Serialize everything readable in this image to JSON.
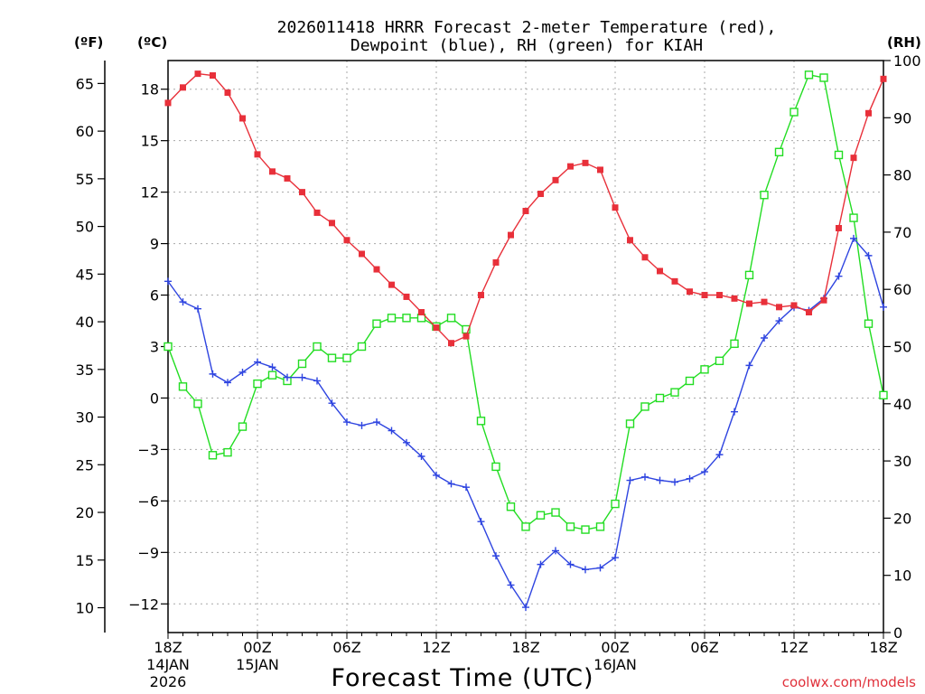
{
  "chart_data": {
    "type": "line",
    "title_line1": "2026011418 HRRR Forecast 2-meter Temperature (red),",
    "title_line2": "Dewpoint (blue), RH (green) for KIAH",
    "xlabel": "Forecast Time (UTC)",
    "credit": "coolwx.com/models",
    "unit_labels": {
      "fahrenheit": "(ºF)",
      "celsius": "(ºC)",
      "rh": "(RH)"
    },
    "x_range_hours": [
      0,
      48
    ],
    "celsius_range": [
      -13.67,
      19.67
    ],
    "rh_range": [
      0,
      100
    ],
    "x_ticks": [
      {
        "hour": 0,
        "label": "18Z",
        "sub1": "14JAN",
        "sub2": "2026"
      },
      {
        "hour": 6,
        "label": "00Z",
        "sub1": "15JAN",
        "sub2": ""
      },
      {
        "hour": 12,
        "label": "06Z",
        "sub1": "",
        "sub2": ""
      },
      {
        "hour": 18,
        "label": "12Z",
        "sub1": "",
        "sub2": ""
      },
      {
        "hour": 24,
        "label": "18Z",
        "sub1": "",
        "sub2": ""
      },
      {
        "hour": 30,
        "label": "00Z",
        "sub1": "16JAN",
        "sub2": ""
      },
      {
        "hour": 36,
        "label": "06Z",
        "sub1": "",
        "sub2": ""
      },
      {
        "hour": 42,
        "label": "12Z",
        "sub1": "",
        "sub2": ""
      },
      {
        "hour": 48,
        "label": "18Z",
        "sub1": "",
        "sub2": ""
      }
    ],
    "celsius_ticks": [
      18,
      15,
      12,
      9,
      6,
      3,
      0,
      -3,
      -6,
      -9,
      -12
    ],
    "celsius_tick_labels": [
      "18",
      "15",
      "12",
      "9",
      "6",
      "3",
      "0",
      "−3",
      "−6",
      "−9",
      "−12"
    ],
    "fahrenheit_ticks": [
      65,
      60,
      55,
      50,
      45,
      40,
      35,
      30,
      25,
      20,
      15,
      10
    ],
    "fahrenheit_tick_labels": [
      "65",
      "60",
      "55",
      "50",
      "45",
      "40",
      "35",
      "30",
      "25",
      "20",
      "15",
      "10"
    ],
    "rh_ticks": [
      100,
      90,
      80,
      70,
      60,
      50,
      40,
      30,
      20,
      10,
      0
    ],
    "rh_tick_labels": [
      "100",
      "90",
      "80",
      "70",
      "60",
      "50",
      "40",
      "30",
      "20",
      "10",
      "0"
    ],
    "series": [
      {
        "name": "Temperature (C)",
        "color": "#e8303a",
        "marker": "filled-square",
        "axis": "celsius",
        "values": [
          17.2,
          18.1,
          18.9,
          18.8,
          17.8,
          16.3,
          14.2,
          13.2,
          12.8,
          12.0,
          10.8,
          10.2,
          9.2,
          8.4,
          7.5,
          6.6,
          5.9,
          5.0,
          4.1,
          3.2,
          3.6,
          6.0,
          7.9,
          9.5,
          10.9,
          11.9,
          12.7,
          13.5,
          13.7,
          13.3,
          11.1,
          9.2,
          8.2,
          7.4,
          6.8,
          6.2,
          6.0,
          6.0,
          5.8,
          5.5,
          5.6,
          5.3,
          5.4,
          5.0,
          5.7,
          9.9,
          14.0,
          16.6,
          18.6
        ]
      },
      {
        "name": "Dewpoint (C)",
        "color": "#2e44e0",
        "marker": "plus",
        "axis": "celsius",
        "values": [
          6.8,
          5.6,
          5.2,
          1.4,
          0.9,
          1.5,
          2.1,
          1.8,
          1.2,
          1.2,
          1.0,
          -0.3,
          -1.4,
          -1.6,
          -1.4,
          -1.9,
          -2.6,
          -3.4,
          -4.5,
          -5.0,
          -5.2,
          -7.2,
          -9.2,
          -10.9,
          -12.2,
          -9.7,
          -8.9,
          -9.7,
          -10.0,
          -9.9,
          -9.3,
          -4.8,
          -4.6,
          -4.8,
          -4.9,
          -4.7,
          -4.3,
          -3.3,
          -0.8,
          1.9,
          3.5,
          4.5,
          5.3,
          5.1,
          5.8,
          7.1,
          9.3,
          8.3,
          5.3
        ]
      },
      {
        "name": "RH (%)",
        "color": "#22dd22",
        "marker": "open-square",
        "axis": "rh",
        "values": [
          50,
          43,
          40,
          31,
          31.5,
          36,
          43.5,
          45,
          44,
          47,
          50,
          48,
          48,
          50,
          54,
          55,
          55,
          55,
          53.5,
          55,
          53,
          37,
          29,
          22,
          18.5,
          20.5,
          21,
          18.5,
          18,
          18.5,
          22.5,
          36.5,
          39.5,
          41,
          42,
          44,
          46,
          47.5,
          50.5,
          62.5,
          76.5,
          84,
          91,
          97.5,
          97,
          83.5,
          72.5,
          54,
          41.5
        ]
      }
    ]
  }
}
